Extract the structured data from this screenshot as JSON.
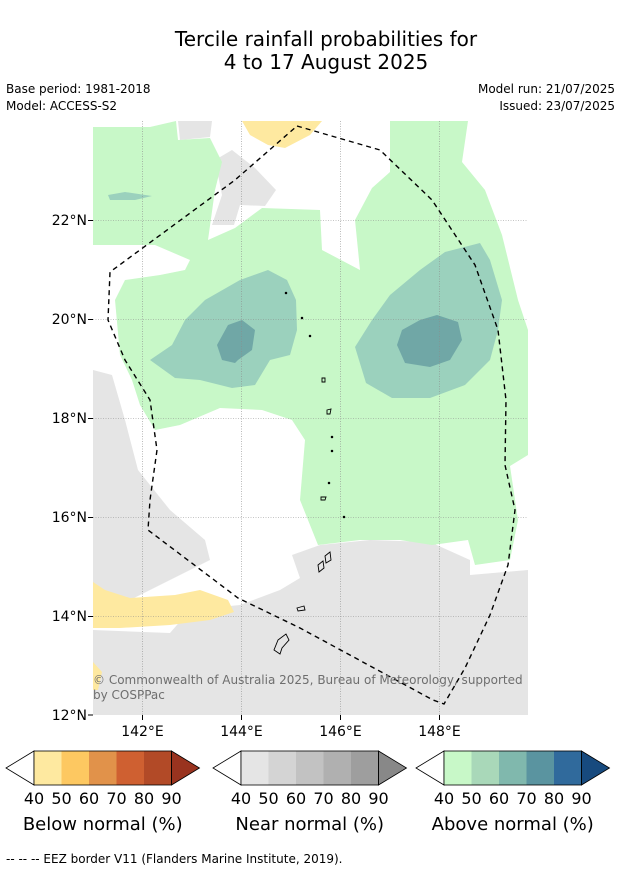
{
  "title_line1": "Tercile rainfall probabilities for",
  "title_line2": "4 to 17 August 2025",
  "base_period": "Base period: 1981-2018",
  "model": "Model: ACCESS-S2",
  "model_run": "Model run: 21/07/2025",
  "issued": "Issued: 23/07/2025",
  "lat_labels": [
    "22°N",
    "20°N",
    "18°N",
    "16°N",
    "14°N",
    "12°N"
  ],
  "lon_labels": [
    "142°E",
    "144°E",
    "146°E",
    "148°E"
  ],
  "credit_line1": "© Commonwealth of Australia 2025, Bureau of Meteorology, supported",
  "credit_line2": "by COSPPac",
  "colorbars": [
    {
      "title": "Below normal (%)",
      "ticks": [
        "40",
        "50",
        "60",
        "70",
        "80",
        "90"
      ],
      "colors": [
        "#ffffff",
        "#fee9a0",
        "#fdc861",
        "#e1924a",
        "#cf6031",
        "#b24a27",
        "#99331f"
      ]
    },
    {
      "title": "Near normal (%)",
      "ticks": [
        "40",
        "50",
        "60",
        "70",
        "80",
        "90"
      ],
      "colors": [
        "#ffffff",
        "#e5e5e5",
        "#d4d4d4",
        "#c2c2c2",
        "#b0b0b0",
        "#9e9e9e",
        "#888888"
      ]
    },
    {
      "title": "Above normal (%)",
      "ticks": [
        "40",
        "50",
        "60",
        "70",
        "80",
        "90"
      ],
      "colors": [
        "#ffffff",
        "#c8f8c8",
        "#a9d8b9",
        "#80b8ad",
        "#5a94a0",
        "#306a9c",
        "#174a7e"
      ]
    }
  ],
  "footer": "--  --  -- EEZ border V11 (Flanders Marine Institute, 2019).",
  "map_colors": {
    "above_40": "#c8f8c8",
    "above_50": "#9bd1bd",
    "above_60": "#70a7a6",
    "near_40": "#e5e5e5",
    "below_40": "#fee9a0"
  }
}
